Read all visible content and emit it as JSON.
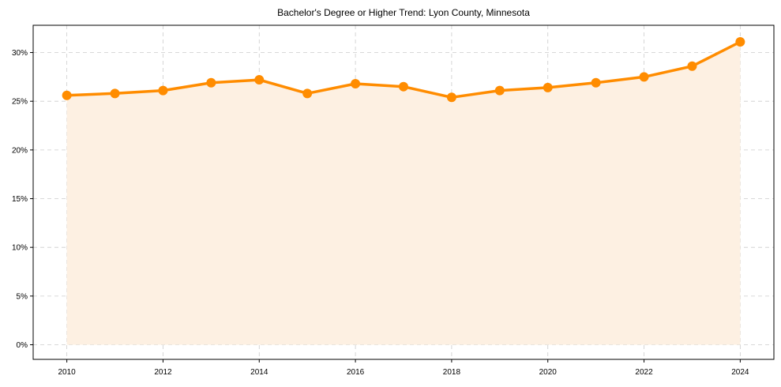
{
  "chart_data": {
    "type": "line",
    "title": "Bachelor's Degree or Higher Trend: Lyon County, Minnesota",
    "xlabel": "",
    "ylabel": "",
    "x": [
      2010,
      2011,
      2012,
      2013,
      2014,
      2015,
      2016,
      2017,
      2018,
      2019,
      2020,
      2021,
      2022,
      2023,
      2024
    ],
    "series": [
      {
        "name": "Bachelor's Degree or Higher",
        "values": [
          25.6,
          25.8,
          26.1,
          26.9,
          27.2,
          25.8,
          26.8,
          26.5,
          25.4,
          26.1,
          26.4,
          26.9,
          27.5,
          28.6,
          31.1
        ],
        "color": "#ff8c00",
        "fill": "area",
        "fill_color": "#fdf0e2",
        "markers": true
      }
    ],
    "xticks": [
      "2010",
      "2012",
      "2014",
      "2016",
      "2018",
      "2020",
      "2022",
      "2024"
    ],
    "yticks": [
      "0%",
      "5%",
      "10%",
      "15%",
      "20%",
      "25%",
      "30%"
    ],
    "ylim": [
      -1.5,
      32.8
    ],
    "xlim": [
      2009.3,
      2024.7
    ],
    "grid": true,
    "legend": false
  }
}
